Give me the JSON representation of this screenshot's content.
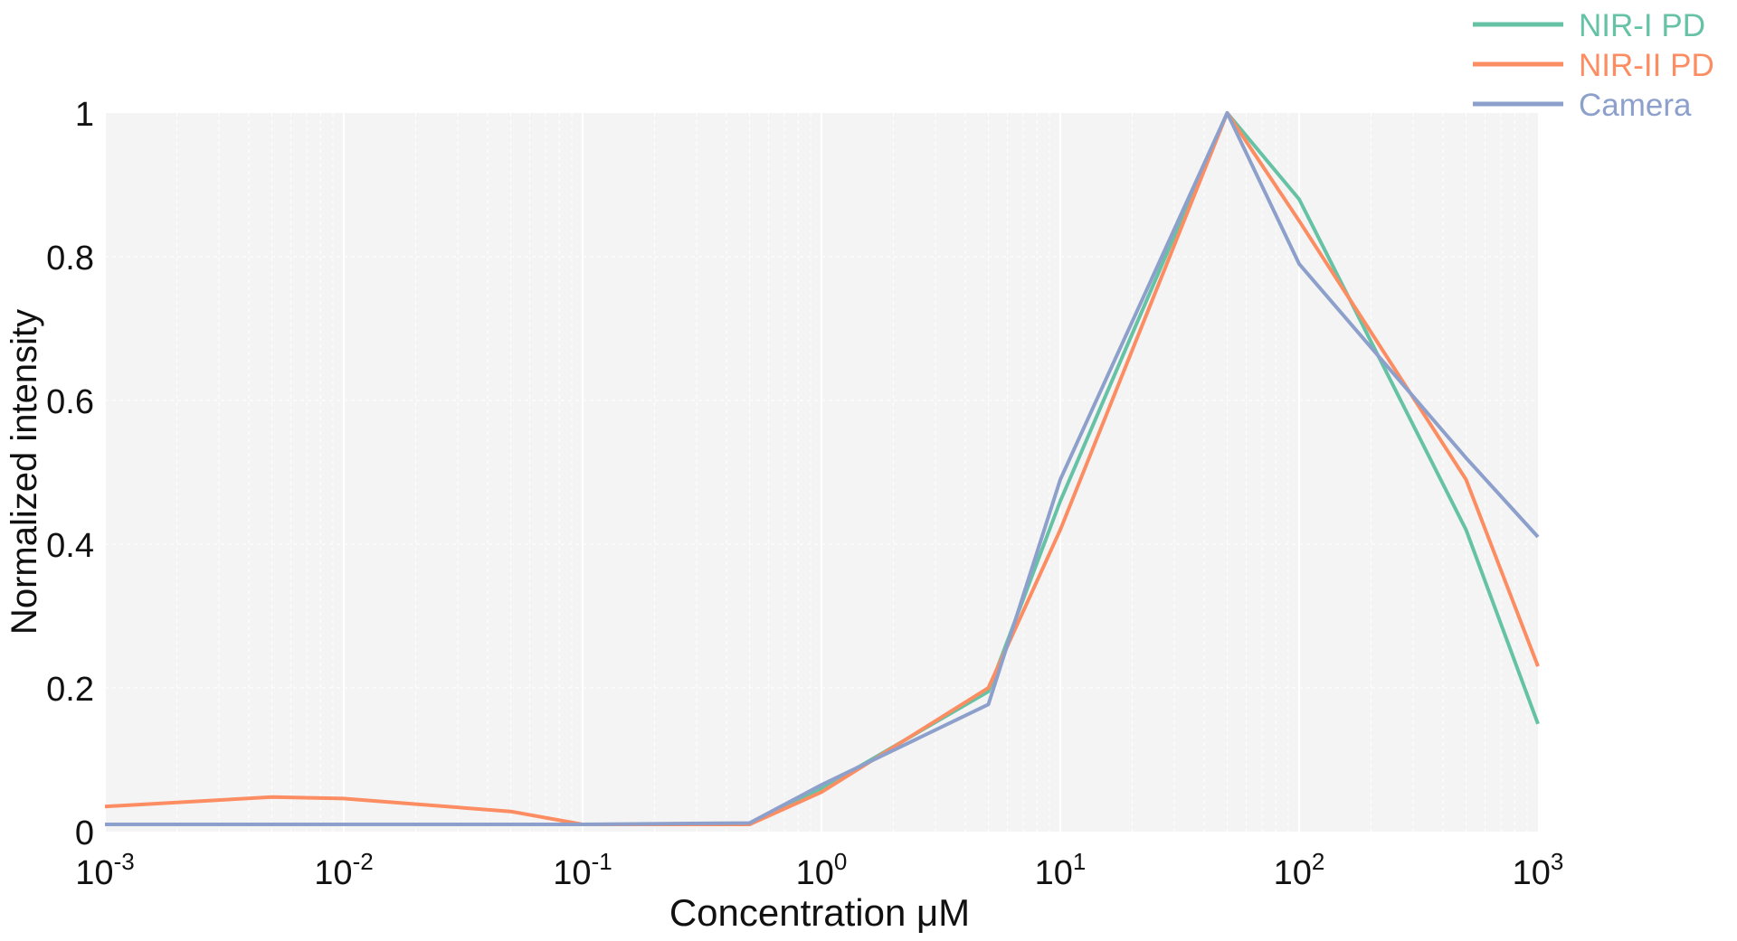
{
  "chart_data": {
    "type": "line",
    "xscale": "log",
    "xlim": [
      0.001,
      1000
    ],
    "ylim": [
      0,
      1
    ],
    "grid": true,
    "legend_position": "top-right",
    "xlabel": "Concentration μM",
    "ylabel": "Normalized intensity",
    "xticks": [
      {
        "base": "10",
        "exp": "-3"
      },
      {
        "base": "10",
        "exp": "-2"
      },
      {
        "base": "10",
        "exp": "-1"
      },
      {
        "base": "10",
        "exp": "0"
      },
      {
        "base": "10",
        "exp": "1"
      },
      {
        "base": "10",
        "exp": "2"
      },
      {
        "base": "10",
        "exp": "3"
      }
    ],
    "yticks": [
      "0",
      "0.2",
      "0.4",
      "0.6",
      "0.8",
      "1"
    ],
    "x": [
      0.001,
      0.005,
      0.01,
      0.05,
      0.1,
      0.5,
      1,
      5,
      10,
      50,
      100,
      500,
      1000
    ],
    "series": [
      {
        "name": "NIR-I PD",
        "color": "#66c2a5",
        "values": [
          0.01,
          0.01,
          0.01,
          0.01,
          0.01,
          0.01,
          0.06,
          0.195,
          0.46,
          1.0,
          0.88,
          0.42,
          0.15
        ]
      },
      {
        "name": "NIR-II PD",
        "color": "#fc8d62",
        "values": [
          0.035,
          0.048,
          0.046,
          0.028,
          0.01,
          0.01,
          0.055,
          0.2,
          0.42,
          1.0,
          0.85,
          0.49,
          0.23
        ]
      },
      {
        "name": "Camera",
        "color": "#8da0cb",
        "values": [
          0.01,
          0.01,
          0.01,
          0.01,
          0.01,
          0.012,
          0.065,
          0.177,
          0.49,
          1.0,
          0.79,
          0.52,
          0.41
        ]
      }
    ]
  }
}
